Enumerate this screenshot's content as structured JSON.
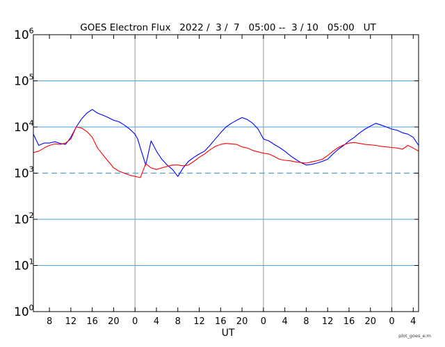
{
  "chart_data": {
    "type": "line",
    "title": "GOES Electron Flux   2022 /  3 /  7   05:00 --  3 / 10   05:00   UT",
    "xlabel": "UT",
    "footer": "plot_goes_e.m",
    "x_unit": "hours since 2022-03-07 05:00 UT",
    "xlim": [
      0,
      72
    ],
    "y_scale": "log",
    "ylim": [
      1,
      1000000
    ],
    "y_ticks": [
      {
        "base": "10",
        "exp": "0",
        "value": 1
      },
      {
        "base": "10",
        "exp": "1",
        "value": 10
      },
      {
        "base": "10",
        "exp": "2",
        "value": 100
      },
      {
        "base": "10",
        "exp": "3",
        "value": 1000
      },
      {
        "base": "10",
        "exp": "4",
        "value": 10000
      },
      {
        "base": "10",
        "exp": "5",
        "value": 100000
      },
      {
        "base": "10",
        "exp": "6",
        "value": 1000000
      }
    ],
    "x_ticks": [
      {
        "label": "8",
        "x": 3
      },
      {
        "label": "12",
        "x": 7
      },
      {
        "label": "16",
        "x": 11
      },
      {
        "label": "20",
        "x": 15
      },
      {
        "label": "0",
        "x": 19
      },
      {
        "label": "4",
        "x": 23
      },
      {
        "label": "8",
        "x": 27
      },
      {
        "label": "12",
        "x": 31
      },
      {
        "label": "16",
        "x": 35
      },
      {
        "label": "20",
        "x": 39
      },
      {
        "label": "0",
        "x": 43
      },
      {
        "label": "4",
        "x": 47
      },
      {
        "label": "8",
        "x": 51
      },
      {
        "label": "12",
        "x": 55
      },
      {
        "label": "16",
        "x": 59
      },
      {
        "label": "20",
        "x": 63
      },
      {
        "label": "0",
        "x": 67
      },
      {
        "label": "4",
        "x": 71
      }
    ],
    "day_boundaries": [
      19,
      43,
      67
    ],
    "grid": {
      "horizontal_solid": [
        10,
        100,
        10000,
        100000
      ],
      "horizontal_dashed": [
        1000
      ],
      "color": "#4a9fd8"
    },
    "series": [
      {
        "color": "#0000ff",
        "x": [
          0,
          1,
          2,
          3,
          4,
          5,
          6,
          7,
          8,
          9,
          10,
          11,
          12,
          13,
          14,
          15,
          16,
          17,
          18,
          19,
          19.5,
          20,
          21,
          22,
          23,
          24,
          25,
          26,
          27,
          28,
          29,
          30,
          31,
          32,
          33,
          34,
          35,
          36,
          37,
          38,
          39,
          40,
          41,
          42,
          43,
          44,
          45,
          46,
          47,
          48,
          49,
          50,
          51,
          52,
          53,
          54,
          55,
          56,
          57,
          58,
          59,
          60,
          61,
          62,
          63,
          64,
          65,
          66,
          67,
          68,
          69,
          70,
          71,
          72
        ],
        "y": [
          7000,
          4000,
          4500,
          4500,
          4800,
          4400,
          4200,
          6000,
          10000,
          15000,
          20000,
          24000,
          20000,
          18000,
          16000,
          14000,
          13000,
          11000,
          9000,
          7000,
          5500,
          3500,
          1500,
          5000,
          3000,
          2000,
          1500,
          1200,
          850,
          1300,
          1800,
          2200,
          2600,
          3000,
          4000,
          5500,
          7500,
          10000,
          12000,
          14000,
          16000,
          14500,
          12000,
          9000,
          5500,
          5000,
          4200,
          3600,
          3000,
          2400,
          2000,
          1700,
          1500,
          1550,
          1650,
          1800,
          2000,
          2600,
          3300,
          4000,
          5000,
          6000,
          7500,
          9000,
          10500,
          12000,
          11000,
          10000,
          9000,
          8500,
          7500,
          7000,
          6000,
          4000
        ]
      },
      {
        "color": "#ff0000",
        "x": [
          0,
          1,
          2,
          3,
          4,
          5,
          6,
          7,
          8,
          9,
          10,
          11,
          12,
          13,
          14,
          15,
          16,
          17,
          18,
          19,
          20,
          21,
          22,
          23,
          24,
          25,
          26,
          27,
          28,
          29,
          30,
          31,
          32,
          33,
          34,
          35,
          36,
          37,
          38,
          39,
          40,
          41,
          42,
          43,
          44,
          45,
          46,
          47,
          48,
          49,
          50,
          51,
          52,
          53,
          54,
          55,
          56,
          57,
          58,
          59,
          60,
          61,
          62,
          63,
          64,
          65,
          66,
          67,
          68,
          69,
          70,
          71,
          72
        ],
        "y": [
          2800,
          3000,
          3500,
          4000,
          4300,
          4200,
          4500,
          5500,
          10000,
          9500,
          8000,
          6000,
          3500,
          2500,
          1800,
          1300,
          1100,
          1000,
          900,
          850,
          800,
          1600,
          1300,
          1200,
          1300,
          1400,
          1500,
          1500,
          1450,
          1500,
          1800,
          2200,
          2600,
          3200,
          3800,
          4200,
          4400,
          4300,
          4200,
          3700,
          3500,
          3100,
          2900,
          2700,
          2600,
          2300,
          2000,
          1900,
          1850,
          1750,
          1700,
          1650,
          1750,
          1850,
          2000,
          2400,
          3000,
          3600,
          4100,
          4500,
          4600,
          4400,
          4200,
          4100,
          4000,
          3800,
          3700,
          3600,
          3500,
          3300,
          4000,
          3500,
          3000
        ]
      }
    ]
  }
}
